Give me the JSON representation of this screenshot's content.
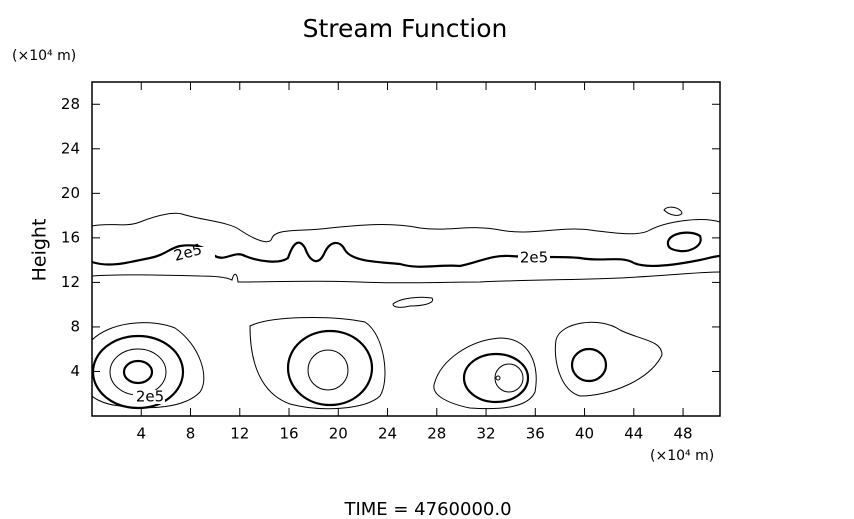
{
  "chart_data": {
    "type": "contour",
    "title": "Stream Function",
    "ylabel": "Height",
    "xunit": "(×10⁴ m)",
    "yunit": "(×10⁴ m)",
    "xlim": [
      0,
      51
    ],
    "ylim": [
      0,
      30
    ],
    "xticks": [
      4,
      8,
      12,
      16,
      20,
      24,
      28,
      32,
      36,
      40,
      44,
      48
    ],
    "yticks": [
      4,
      8,
      12,
      16,
      20,
      24,
      28
    ],
    "contour_labels": [
      "2e5",
      "2e5",
      "2e5"
    ],
    "footer": "TIME  =  4760000.0"
  }
}
